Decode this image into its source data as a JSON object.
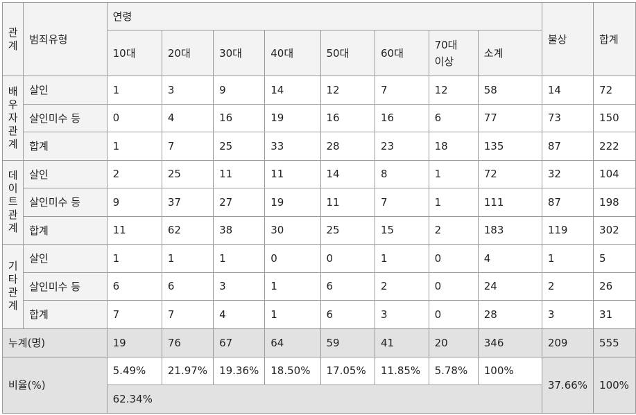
{
  "table": {
    "header": {
      "relation": "관계",
      "crime_type": "범죄유형",
      "age": "연령",
      "ages": [
        "10대",
        "20대",
        "30대",
        "40대",
        "50대",
        "60대",
        "70대 이상",
        "소계"
      ],
      "unknown": "불상",
      "total": "합계"
    },
    "groups": [
      {
        "label": "배우자관계",
        "rows": [
          {
            "type": "살인",
            "values": [
              1,
              3,
              9,
              14,
              12,
              7,
              12,
              58,
              14,
              72
            ]
          },
          {
            "type": "살인미수 등",
            "values": [
              0,
              4,
              16,
              19,
              16,
              16,
              6,
              77,
              73,
              150
            ]
          },
          {
            "type": "합계",
            "values": [
              1,
              7,
              25,
              33,
              28,
              23,
              18,
              135,
              87,
              222
            ]
          }
        ]
      },
      {
        "label": "데이트관계",
        "rows": [
          {
            "type": "살인",
            "values": [
              2,
              25,
              11,
              11,
              14,
              8,
              1,
              72,
              32,
              104
            ]
          },
          {
            "type": "살인미수 등",
            "values": [
              9,
              37,
              27,
              19,
              11,
              7,
              1,
              111,
              87,
              198
            ]
          },
          {
            "type": "합계",
            "values": [
              11,
              62,
              38,
              30,
              25,
              15,
              2,
              183,
              119,
              302
            ]
          }
        ]
      },
      {
        "label": "기타 관계",
        "rows": [
          {
            "type": "살인",
            "values": [
              1,
              1,
              1,
              0,
              0,
              1,
              0,
              4,
              1,
              5
            ]
          },
          {
            "type": "살인미수 등",
            "values": [
              6,
              6,
              3,
              1,
              6,
              2,
              0,
              24,
              2,
              26
            ]
          },
          {
            "type": "합계",
            "values": [
              7,
              7,
              4,
              1,
              6,
              3,
              0,
              28,
              3,
              31
            ]
          }
        ]
      }
    ],
    "cumulative": {
      "label": "누계(명)",
      "values": [
        19,
        76,
        67,
        64,
        59,
        41,
        20,
        346,
        209,
        555
      ]
    },
    "ratio": {
      "label": "비율(%)",
      "values": [
        "5.49%",
        "21.97%",
        "19.36%",
        "18.50%",
        "17.05%",
        "11.85%",
        "5.78%",
        "100%"
      ],
      "unknown": "37.66%",
      "total": "100%",
      "age_total": "62.34%"
    }
  }
}
